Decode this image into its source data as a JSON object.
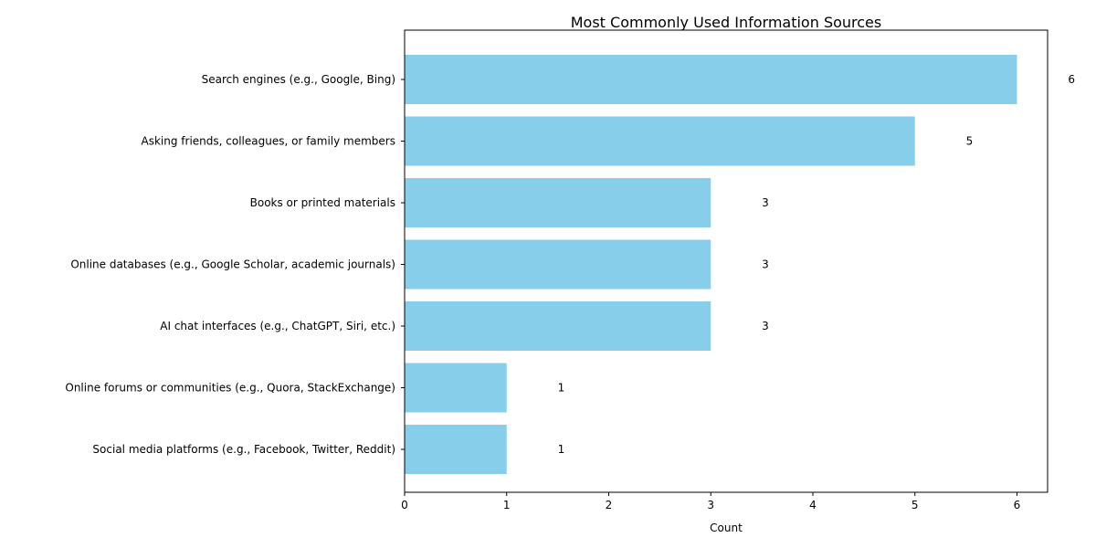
{
  "chart_data": {
    "type": "bar",
    "orientation": "horizontal",
    "title": "Most Commonly Used Information Sources",
    "xlabel": "Count",
    "ylabel": "",
    "xlim": [
      0,
      6.3
    ],
    "xticks": [
      0,
      1,
      2,
      3,
      4,
      5,
      6
    ],
    "grid": false,
    "bar_color": "#87CEEB",
    "categories": [
      "Search engines (e.g., Google, Bing)",
      "Asking friends, colleagues, or family members",
      "Books or printed materials",
      "Online databases (e.g., Google Scholar, academic journals)",
      "AI chat interfaces (e.g., ChatGPT, Siri, etc.)",
      "Online forums or communities (e.g., Quora, StackExchange)",
      "Social media platforms (e.g., Facebook, Twitter, Reddit)"
    ],
    "values": [
      6,
      5,
      3,
      3,
      3,
      1,
      1
    ],
    "data_labels": [
      "6",
      "5",
      "3",
      "3",
      "3",
      "1",
      "1"
    ]
  }
}
